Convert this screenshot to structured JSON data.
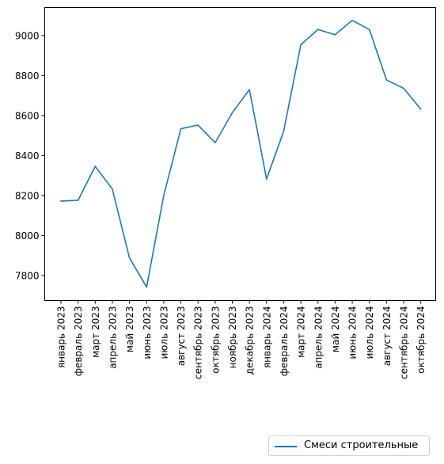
{
  "chart_data": {
    "type": "line",
    "categories": [
      "январь 2023",
      "февраль 2023",
      "март 2023",
      "апрель 2023",
      "май 2023",
      "июнь 2023",
      "июль 2023",
      "август 2023",
      "сентябрь 2023",
      "октябрь 2023",
      "ноябрь 2023",
      "декабрь 2023",
      "январь 2024",
      "февраль 2024",
      "март 2024",
      "апрель 2024",
      "май 2024",
      "июнь 2024",
      "июль 2024",
      "август 2024",
      "сентябрь 2024",
      "октябрь 2024"
    ],
    "series": [
      {
        "name": "Смеси строительные",
        "color": "#1f77b4",
        "values": [
          8172,
          8176,
          8346,
          8232,
          7888,
          7742,
          8200,
          8534,
          8552,
          8464,
          8614,
          8730,
          8282,
          8522,
          8954,
          9030,
          9004,
          9076,
          9030,
          8778,
          8736,
          8632
        ]
      }
    ],
    "y_ticks": [
      7800,
      8000,
      8200,
      8400,
      8600,
      8800,
      9000
    ],
    "ylim": [
      7675,
      9140
    ],
    "grid": false,
    "legend_position": "bottom-right",
    "title": "",
    "xlabel": "",
    "ylabel": ""
  }
}
